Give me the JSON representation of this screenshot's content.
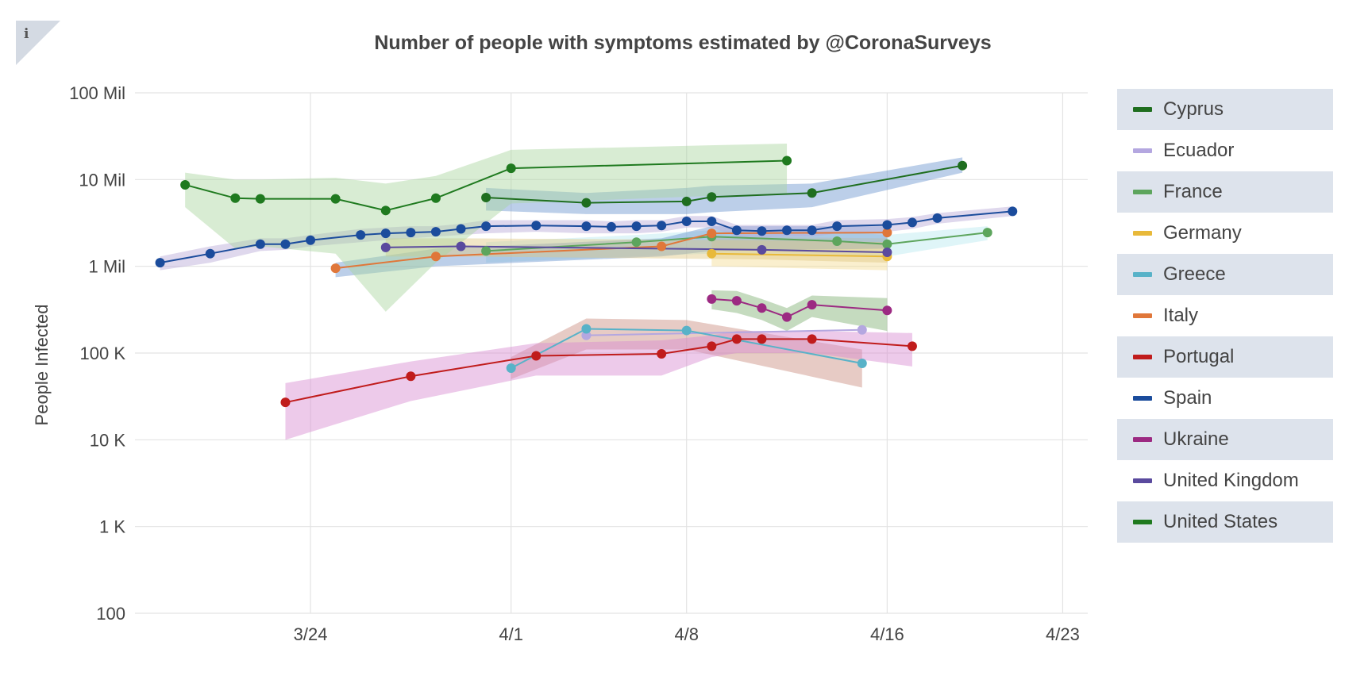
{
  "info_icon": "info-icon",
  "chart_data": {
    "type": "line",
    "title": "Number of people with symptoms estimated by @CoronaSurveys",
    "ylabel": "People Infected",
    "xlabel": "",
    "y_scale": "log",
    "ylim": [
      100,
      100000000
    ],
    "xlim": [
      "2020-03-17",
      "2020-04-24"
    ],
    "grid": true,
    "legend_position": "right",
    "y_ticks": [
      {
        "value": 100,
        "label": "100"
      },
      {
        "value": 1000,
        "label": "1 K"
      },
      {
        "value": 10000,
        "label": "10 K"
      },
      {
        "value": 100000,
        "label": "100 K"
      },
      {
        "value": 1000000,
        "label": "1 Mil"
      },
      {
        "value": 10000000,
        "label": "10 Mil"
      },
      {
        "value": 100000000,
        "label": "100 Mil"
      }
    ],
    "x_ticks": [
      {
        "value": "2020-03-24",
        "label": "3/24"
      },
      {
        "value": "2020-04-01",
        "label": "4/1"
      },
      {
        "value": "2020-04-08",
        "label": "4/8"
      },
      {
        "value": "2020-04-16",
        "label": "4/16"
      },
      {
        "value": "2020-04-23",
        "label": "4/23"
      }
    ],
    "series": [
      {
        "name": "Cyprus",
        "color": "#1f6e1f",
        "band_color": "#6a95cf",
        "points": [
          [
            "2020-03-31",
            6200000
          ],
          [
            "2020-04-04",
            5400000
          ],
          [
            "2020-04-08",
            5600000
          ],
          [
            "2020-04-09",
            6300000
          ],
          [
            "2020-04-13",
            7000000
          ],
          [
            "2020-04-19",
            14500000
          ]
        ],
        "lower": [
          4400000,
          4000000,
          4000000,
          4200000,
          4800000,
          12000000
        ],
        "upper": [
          8000000,
          7000000,
          8000000,
          8500000,
          9000000,
          18000000
        ]
      },
      {
        "name": "Ecuador",
        "color": "#b4a7e0",
        "band_color": null,
        "points": [
          [
            "2020-04-04",
            160000
          ],
          [
            "2020-04-15",
            185000
          ]
        ],
        "lower": null,
        "upper": null
      },
      {
        "name": "France",
        "color": "#5da55d",
        "band_color": "#b7e8f0",
        "points": [
          [
            "2020-03-31",
            1500000
          ],
          [
            "2020-04-06",
            1900000
          ],
          [
            "2020-04-09",
            2200000
          ],
          [
            "2020-04-14",
            1950000
          ],
          [
            "2020-04-16",
            1800000
          ],
          [
            "2020-04-20",
            2450000
          ]
        ],
        "lower": [
          1100000,
          1300000,
          1400000,
          1300000,
          1300000,
          2000000
        ],
        "upper": [
          1900000,
          2300000,
          2600000,
          2500000,
          2300000,
          2900000
        ]
      },
      {
        "name": "Germany",
        "color": "#e8b93a",
        "band_color": "#f5dc92",
        "points": [
          [
            "2020-04-09",
            1400000
          ],
          [
            "2020-04-16",
            1300000
          ]
        ],
        "lower": [
          1000000,
          900000
        ],
        "upper": [
          2200000,
          2100000
        ]
      },
      {
        "name": "Greece",
        "color": "#58b2c8",
        "band_color": "#c98b7e",
        "points": [
          [
            "2020-04-01",
            67000
          ],
          [
            "2020-04-04",
            190000
          ],
          [
            "2020-04-08",
            182000
          ],
          [
            "2020-04-15",
            76000
          ]
        ],
        "lower": [
          50000,
          110000,
          110000,
          40000
        ],
        "upper": [
          90000,
          250000,
          240000,
          110000
        ]
      },
      {
        "name": "Italy",
        "color": "#e0773a",
        "band_color": "#6a95cf",
        "points": [
          [
            "2020-03-25",
            950000
          ],
          [
            "2020-03-29",
            1300000
          ],
          [
            "2020-04-07",
            1700000
          ],
          [
            "2020-04-09",
            2400000
          ],
          [
            "2020-04-16",
            2450000
          ]
        ],
        "lower": [
          750000,
          1000000,
          1300000,
          1500000,
          1600000
        ],
        "upper": [
          1100000,
          1600000,
          2100000,
          2900000,
          2900000
        ]
      },
      {
        "name": "Portugal",
        "color": "#c01c1c",
        "band_color": "#d88ad0",
        "points": [
          [
            "2020-03-23",
            27000
          ],
          [
            "2020-03-28",
            54000
          ],
          [
            "2020-04-02",
            93000
          ],
          [
            "2020-04-07",
            98000
          ],
          [
            "2020-04-09",
            120000
          ],
          [
            "2020-04-10",
            145000
          ],
          [
            "2020-04-11",
            145000
          ],
          [
            "2020-04-13",
            145000
          ],
          [
            "2020-04-17",
            120000
          ]
        ],
        "lower": [
          10000,
          28000,
          55000,
          55000,
          90000,
          100000,
          100000,
          100000,
          70000
        ],
        "upper": [
          45000,
          80000,
          130000,
          140000,
          160000,
          180000,
          180000,
          180000,
          170000
        ]
      },
      {
        "name": "Spain",
        "color": "#1b4c9c",
        "band_color": "#b7a9d7",
        "points": [
          [
            "2020-03-18",
            1100000
          ],
          [
            "2020-03-20",
            1400000
          ],
          [
            "2020-03-22",
            1800000
          ],
          [
            "2020-03-23",
            1800000
          ],
          [
            "2020-03-24",
            2000000
          ],
          [
            "2020-03-26",
            2300000
          ],
          [
            "2020-03-27",
            2400000
          ],
          [
            "2020-03-28",
            2450000
          ],
          [
            "2020-03-29",
            2500000
          ],
          [
            "2020-03-30",
            2700000
          ],
          [
            "2020-03-31",
            2900000
          ],
          [
            "2020-04-02",
            2950000
          ],
          [
            "2020-04-04",
            2900000
          ],
          [
            "2020-04-05",
            2850000
          ],
          [
            "2020-04-06",
            2900000
          ],
          [
            "2020-04-07",
            2950000
          ],
          [
            "2020-04-08",
            3300000
          ],
          [
            "2020-04-09",
            3300000
          ],
          [
            "2020-04-10",
            2600000
          ],
          [
            "2020-04-11",
            2550000
          ],
          [
            "2020-04-12",
            2600000
          ],
          [
            "2020-04-13",
            2600000
          ],
          [
            "2020-04-14",
            2900000
          ],
          [
            "2020-04-16",
            3000000
          ],
          [
            "2020-04-17",
            3200000
          ],
          [
            "2020-04-18",
            3600000
          ],
          [
            "2020-04-21",
            4300000
          ]
        ],
        "lower": [
          900000,
          1100000,
          1500000,
          1550000,
          1700000,
          1900000,
          2000000,
          2100000,
          2200000,
          2300000,
          2400000,
          2500000,
          2400000,
          2400000,
          2400000,
          2500000,
          2800000,
          2800000,
          2200000,
          2150000,
          2200000,
          2200000,
          2400000,
          2500000,
          2700000,
          3100000,
          3800000
        ],
        "upper": [
          1300000,
          1700000,
          2100000,
          2100000,
          2300000,
          2700000,
          2800000,
          2900000,
          2900000,
          3100000,
          3400000,
          3400000,
          3400000,
          3300000,
          3400000,
          3400000,
          3800000,
          3800000,
          3000000,
          3000000,
          3000000,
          3000000,
          3400000,
          3500000,
          3700000,
          4100000,
          4900000
        ]
      },
      {
        "name": "Ukraine",
        "color": "#9c2a82",
        "band_color": "#7fb071",
        "points": [
          [
            "2020-04-09",
            420000
          ],
          [
            "2020-04-10",
            400000
          ],
          [
            "2020-04-11",
            330000
          ],
          [
            "2020-04-12",
            260000
          ],
          [
            "2020-04-13",
            360000
          ],
          [
            "2020-04-16",
            310000
          ]
        ],
        "lower": [
          320000,
          290000,
          240000,
          180000,
          260000,
          180000
        ],
        "upper": [
          530000,
          520000,
          420000,
          330000,
          460000,
          430000
        ]
      },
      {
        "name": "United Kingdom",
        "color": "#5a4a9e",
        "band_color": "#dfc782",
        "points": [
          [
            "2020-03-27",
            1650000
          ],
          [
            "2020-03-30",
            1700000
          ],
          [
            "2020-04-11",
            1550000
          ],
          [
            "2020-04-16",
            1450000
          ]
        ],
        "lower": [
          1300000,
          1300000,
          1200000,
          1100000
        ],
        "upper": [
          2100000,
          2100000,
          2000000,
          1900000
        ]
      },
      {
        "name": "United States",
        "color": "#1f7a1f",
        "band_color": "#a8d49e",
        "points": [
          [
            "2020-03-19",
            8700000
          ],
          [
            "2020-03-21",
            6100000
          ],
          [
            "2020-03-22",
            6000000
          ],
          [
            "2020-03-25",
            6000000
          ],
          [
            "2020-03-27",
            4400000
          ],
          [
            "2020-03-29",
            6100000
          ],
          [
            "2020-04-01",
            13500000
          ],
          [
            "2020-04-12",
            16500000
          ]
        ],
        "lower": [
          4800000,
          1600000,
          1700000,
          1400000,
          300000,
          1100000,
          5300000,
          7000000
        ],
        "upper": [
          12000000,
          10000000,
          10000000,
          10500000,
          9000000,
          11000000,
          22000000,
          26000000
        ]
      }
    ]
  }
}
